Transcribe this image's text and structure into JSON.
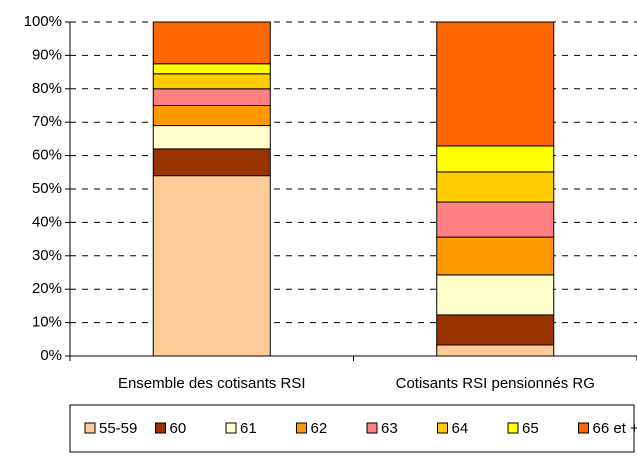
{
  "chart_data": {
    "type": "stacked_bar",
    "categories": [
      "Ensemble des cotisants RSI",
      "Cotisants RSI pensionnés RG"
    ],
    "series": [
      {
        "name": "55-59",
        "color": "#ffcc99",
        "values": [
          54,
          3.3
        ]
      },
      {
        "name": "60",
        "color": "#993300",
        "values": [
          8,
          9
        ]
      },
      {
        "name": "61",
        "color": "#ffffcc",
        "values": [
          7,
          12
        ]
      },
      {
        "name": "62",
        "color": "#ff9900",
        "values": [
          6,
          11.3
        ]
      },
      {
        "name": "63",
        "color": "#ff8080",
        "values": [
          5,
          10.5
        ]
      },
      {
        "name": "64",
        "color": "#ffcc00",
        "values": [
          4.5,
          9
        ]
      },
      {
        "name": "65",
        "color": "#ffff00",
        "values": [
          3,
          7.8
        ]
      },
      {
        "name": "66 et +",
        "color": "#ff6600",
        "values": [
          12.5,
          37.1
        ]
      }
    ],
    "ylim": [
      0,
      100
    ],
    "yticks": [
      {
        "value": 0,
        "label": "0%"
      },
      {
        "value": 10,
        "label": "10%"
      },
      {
        "value": 20,
        "label": "20%"
      },
      {
        "value": 30,
        "label": "30%"
      },
      {
        "value": 40,
        "label": "40%"
      },
      {
        "value": 50,
        "label": "50%"
      },
      {
        "value": 60,
        "label": "60%"
      },
      {
        "value": 70,
        "label": "70%"
      },
      {
        "value": 80,
        "label": "80%"
      },
      {
        "value": 90,
        "label": "90%"
      },
      {
        "value": 100,
        "label": "100%"
      }
    ],
    "grid": true,
    "legend": "bottom"
  }
}
